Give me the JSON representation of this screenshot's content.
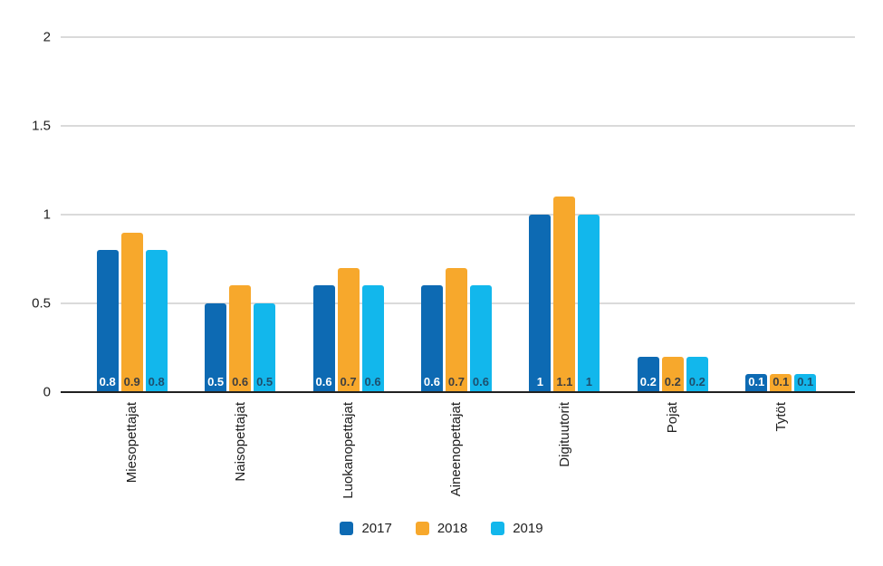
{
  "chart_data": {
    "type": "bar",
    "title": "",
    "categories": [
      "Miesopettajat",
      "Naisopettajat",
      "Luokanopettajat",
      "Aineenopettajat",
      "Digituutorit",
      "Pojat",
      "Tytöt"
    ],
    "series": [
      {
        "name": "2017",
        "color": "#0d6ab3",
        "label_color": "#ffffff",
        "values": [
          0.8,
          0.5,
          0.6,
          0.6,
          1,
          0.2,
          0.1
        ]
      },
      {
        "name": "2018",
        "color": "#f7a82c",
        "label_color": "#3f3f3f",
        "values": [
          0.9,
          0.6,
          0.7,
          0.7,
          1.1,
          0.2,
          0.1
        ]
      },
      {
        "name": "2019",
        "color": "#12b7ec",
        "label_color": "#1d4f6e",
        "values": [
          0.8,
          0.5,
          0.6,
          0.6,
          1,
          0.2,
          0.1
        ]
      }
    ],
    "xlabel": "",
    "ylabel": "",
    "ylim": [
      0,
      2
    ],
    "yticks": [
      0,
      0.5,
      1,
      1.5,
      2
    ],
    "ytick_labels": [
      "0",
      "0.5",
      "1",
      "1.5",
      "2"
    ],
    "grid": true,
    "value_labels_shown": true,
    "legend_position": "bottom",
    "colors": {
      "grid": "#dadada",
      "axis": "#212121",
      "text": "#212121",
      "background": "#ffffff"
    }
  }
}
